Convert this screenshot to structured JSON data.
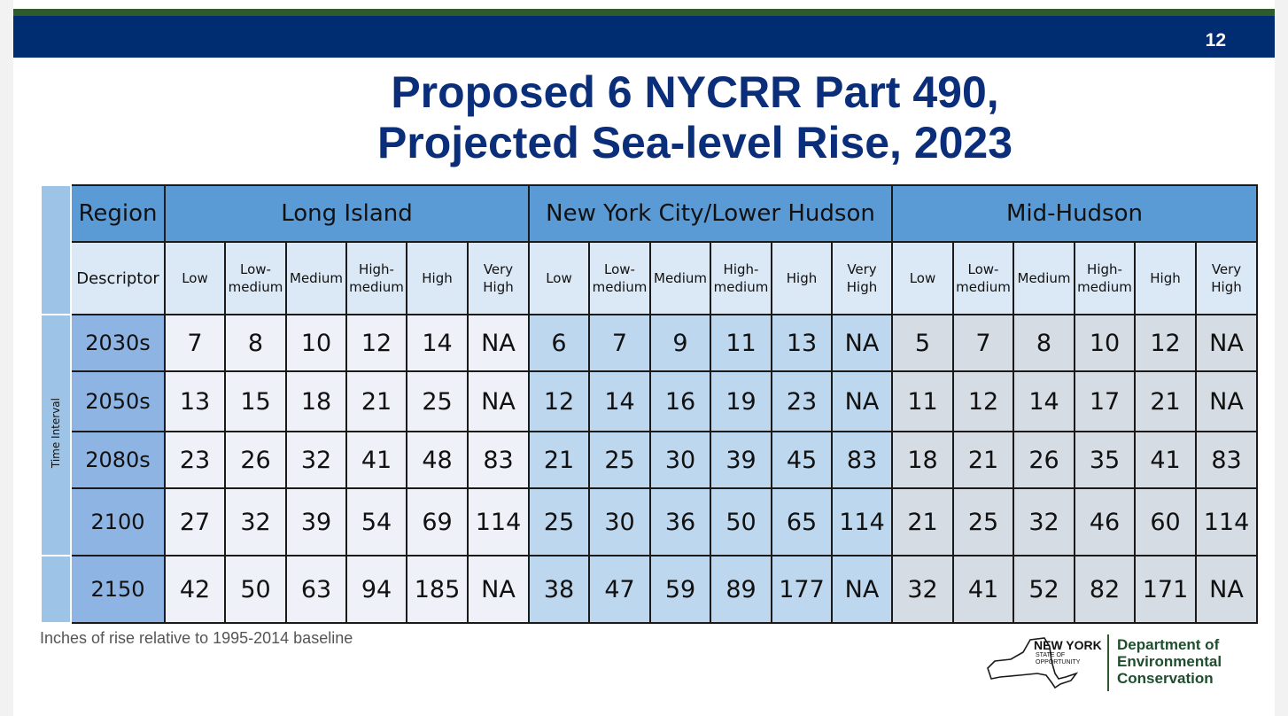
{
  "page_number": "12",
  "title": {
    "line1": "Proposed 6 NYCRR Part 490,",
    "line2": "Projected Sea-level Rise, 2023"
  },
  "table": {
    "side_label": "Time Interval",
    "region_label": "Region",
    "descriptor_label": "Descriptor",
    "regions": [
      {
        "name": "Long Island",
        "descriptors": [
          "Low",
          "Low-\nmedium",
          "Medium",
          "High-\nmedium",
          "High",
          "Very\nHigh"
        ]
      },
      {
        "name": "New York City/Lower Hudson",
        "descriptors": [
          "Low",
          "Low-\nmedium",
          "Medium",
          "High-\nmedium",
          "High",
          "Very\nHigh"
        ]
      },
      {
        "name": "Mid-Hudson",
        "descriptors": [
          "Low",
          "Low-\nmedium",
          "Medium",
          "High-\nmedium",
          "High",
          "Very\nHigh"
        ]
      }
    ],
    "rows": [
      {
        "label": "2030s",
        "values": [
          "7",
          "8",
          "10",
          "12",
          "14",
          "NA",
          "6",
          "7",
          "9",
          "11",
          "13",
          "NA",
          "5",
          "7",
          "8",
          "10",
          "12",
          "NA"
        ]
      },
      {
        "label": "2050s",
        "values": [
          "13",
          "15",
          "18",
          "21",
          "25",
          "NA",
          "12",
          "14",
          "16",
          "19",
          "23",
          "NA",
          "11",
          "12",
          "14",
          "17",
          "21",
          "NA"
        ]
      },
      {
        "label": "2080s",
        "values": [
          "23",
          "26",
          "32",
          "41",
          "48",
          "83",
          "21",
          "25",
          "30",
          "39",
          "45",
          "83",
          "18",
          "21",
          "26",
          "35",
          "41",
          "83"
        ]
      },
      {
        "label": "2100",
        "values": [
          "27",
          "32",
          "39",
          "54",
          "69",
          "114",
          "25",
          "30",
          "36",
          "50",
          "65",
          "114",
          "21",
          "25",
          "32",
          "46",
          "60",
          "114"
        ]
      },
      {
        "label": "2150",
        "values": [
          "42",
          "50",
          "63",
          "94",
          "185",
          "NA",
          "38",
          "47",
          "59",
          "89",
          "177",
          "NA",
          "32",
          "41",
          "52",
          "82",
          "171",
          "NA"
        ]
      }
    ]
  },
  "footnote": "Inches of rise relative to 1995-2014 baseline",
  "logo": {
    "state": "NEW YORK",
    "state_sub": "STATE OF\nOPPORTUNITY",
    "dept_line1": "Department of",
    "dept_line2": "Environmental",
    "dept_line3": "Conservation"
  },
  "colors": {
    "header_blue": "#002d72",
    "header_green": "#2e5a2e",
    "title": "#0b2e7a",
    "region_header": "#5b9bd5",
    "long_island": "#eef1f8",
    "nyc": "#bdd7ee",
    "mid_hudson": "#d6dce4"
  }
}
